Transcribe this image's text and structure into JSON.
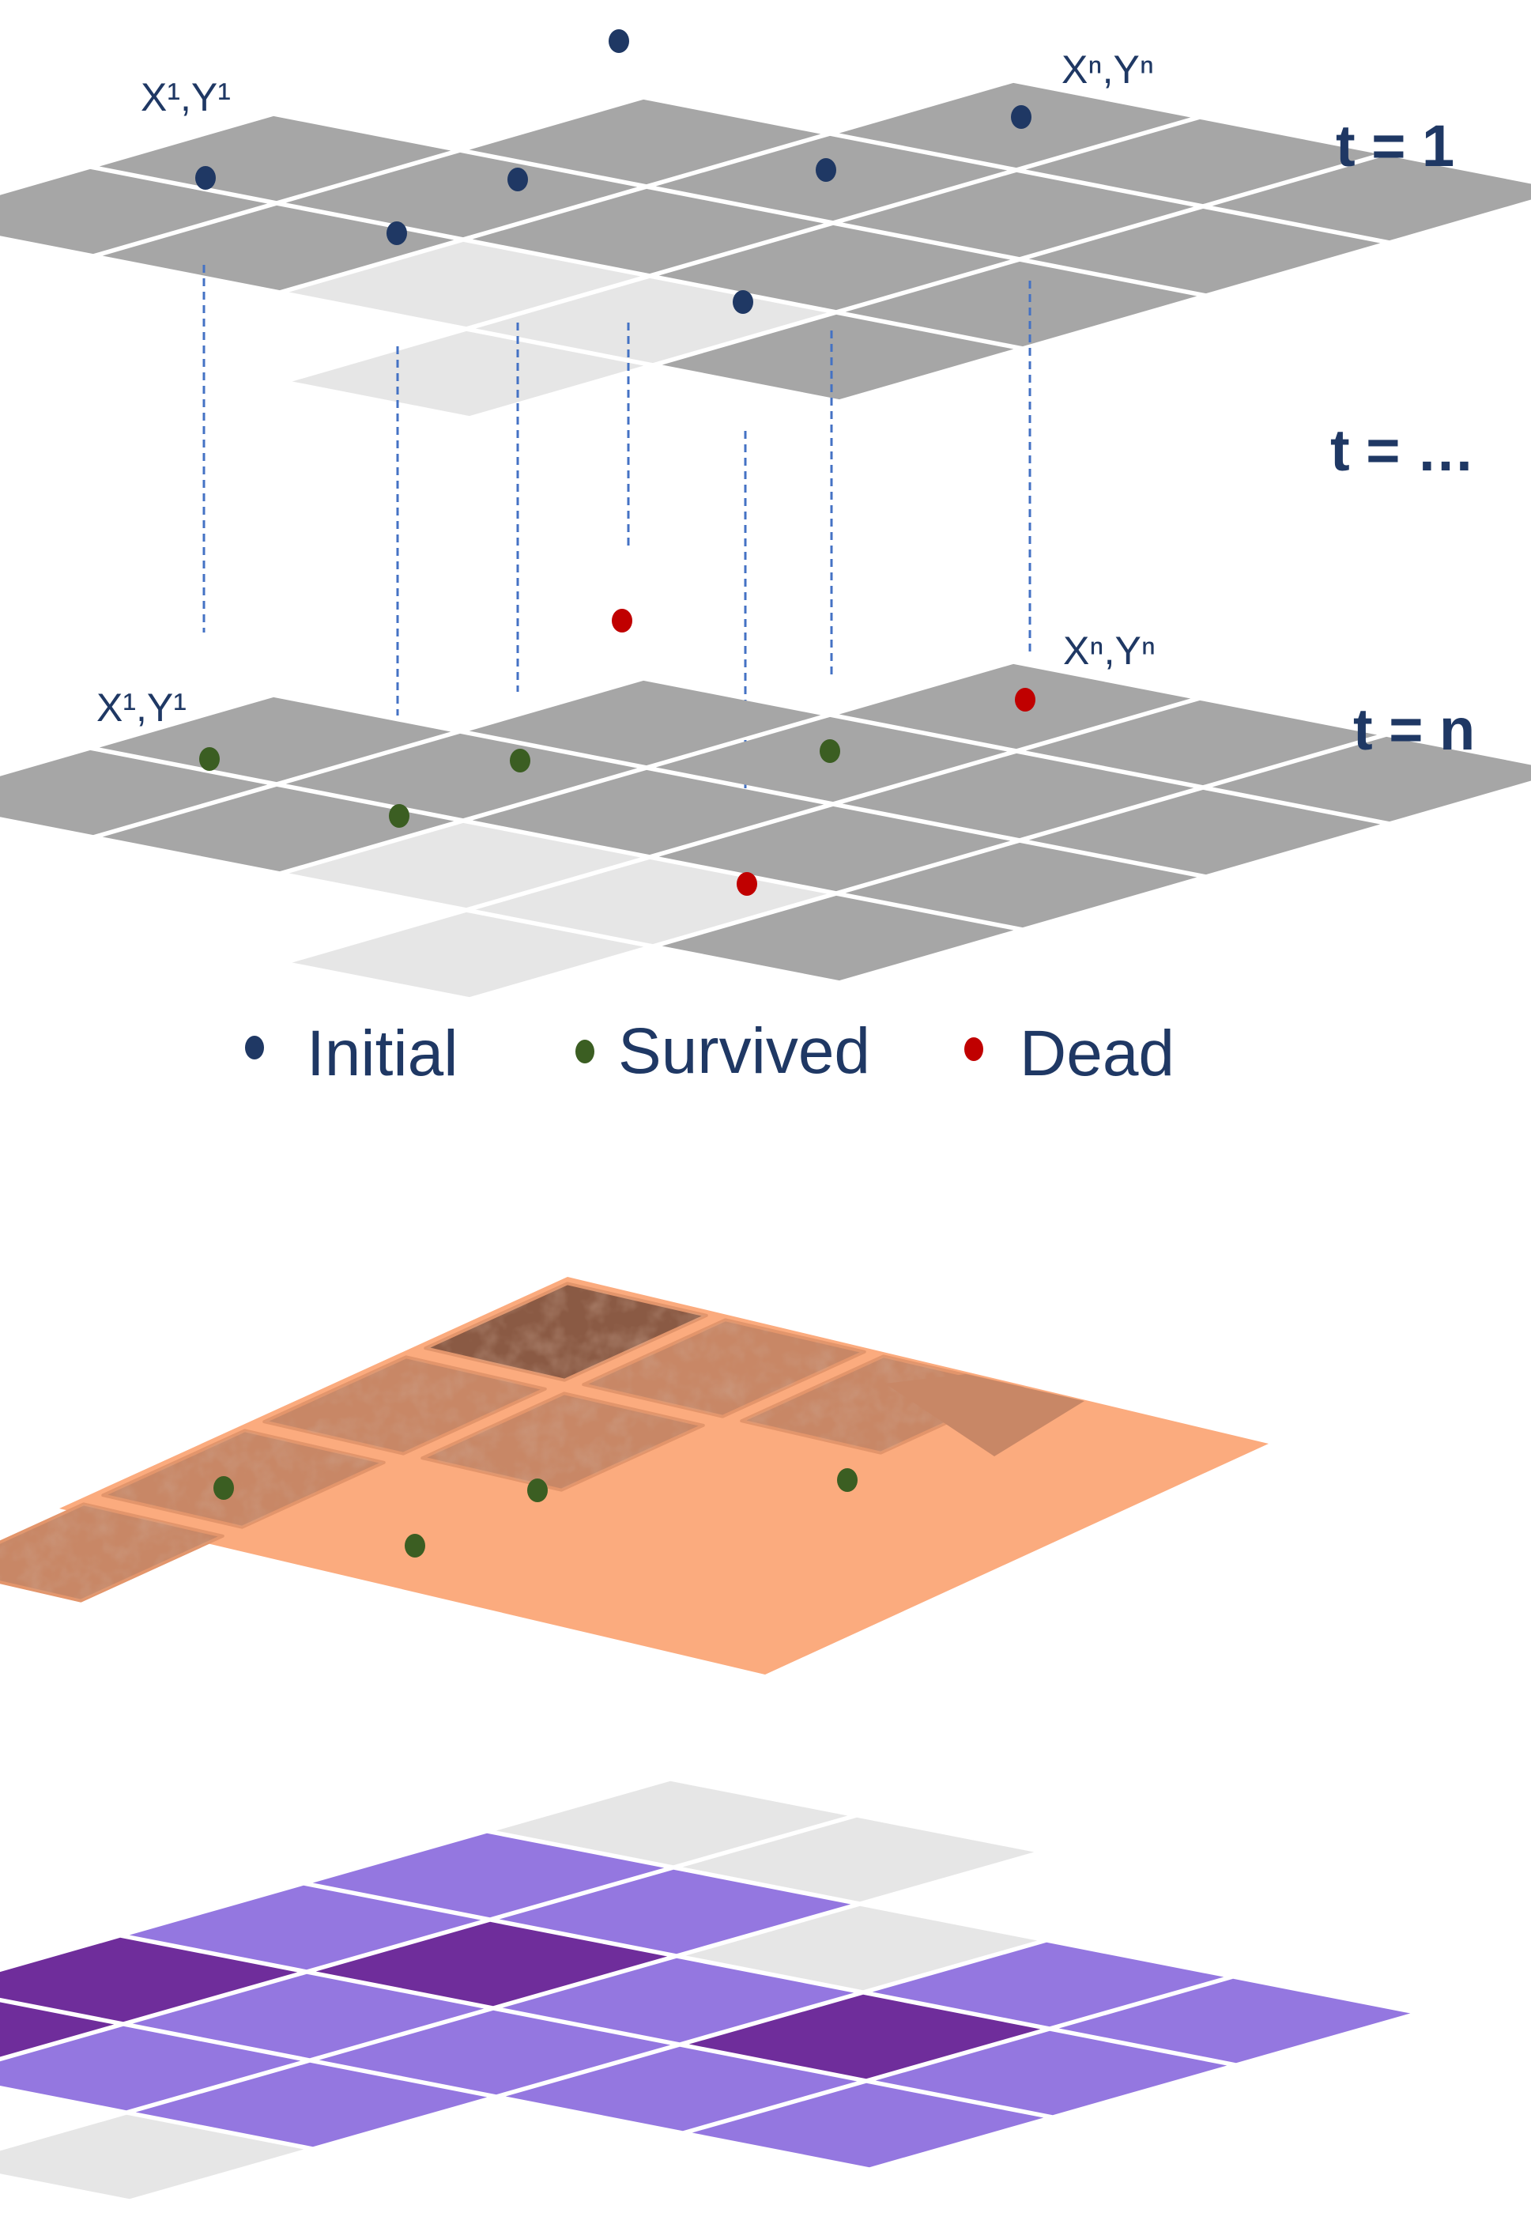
{
  "labels": {
    "corner_first": "X¹,Y¹",
    "corner_last": "Xⁿ,Yⁿ",
    "time_first": "t = 1",
    "time_mid": "t = …",
    "time_last": "t = n"
  },
  "legend": [
    {
      "label": "Initial",
      "color": "#1f3864"
    },
    {
      "label": "Survived",
      "color": "#3b5e22"
    },
    {
      "label": "Dead",
      "color": "#c00000"
    }
  ],
  "colors": {
    "grid_cell": "#a6a6a6",
    "grid_cell_empty": "#e6e6e6",
    "terrain": "#fbab7e",
    "terrain_patch": "#c88766",
    "terrain_patch_dark": "#8a5a44",
    "purple_light": "#9477e0",
    "purple_dark": "#6f2d9b",
    "connector": "#4472c4"
  }
}
